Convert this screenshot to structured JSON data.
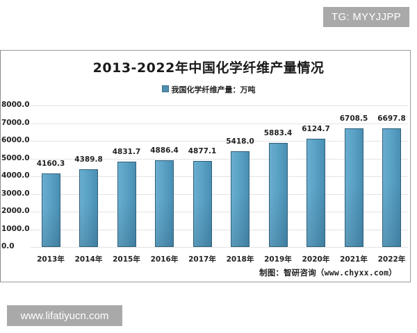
{
  "watermarks": {
    "top_right": "TG: MYYJJPP",
    "bottom_left": "www.lifatiyucn.com"
  },
  "chart": {
    "title": "2013-2022年中国化学纤维产量情况",
    "legend_label": "我国化学纤维产量：万吨",
    "source": "制图：智研咨询（www.chyxx.com）",
    "bar_color": "#5aa2c6",
    "y_ticks": [
      "8000.0",
      "7000.0",
      "6000.0",
      "5000.0",
      "4000.0",
      "3000.0",
      "2000.0",
      "1000.0",
      "0.0"
    ]
  },
  "chart_data": {
    "type": "bar",
    "title": "2013-2022年中国化学纤维产量情况",
    "xlabel": "",
    "ylabel": "",
    "categories": [
      "2013年",
      "2014年",
      "2015年",
      "2016年",
      "2017年",
      "2018年",
      "2019年",
      "2020年",
      "2021年",
      "2022年"
    ],
    "series": [
      {
        "name": "我国化学纤维产量：万吨",
        "values": [
          4160.3,
          4389.8,
          4831.7,
          4886.4,
          4877.1,
          5418.0,
          5883.4,
          6124.7,
          6708.5,
          6697.8
        ],
        "labels": [
          "4160.3",
          "4389.8",
          "4831.7",
          "4886.4",
          "4877.1",
          "5418.0",
          "5883.4",
          "6124.7",
          "6708.5",
          "6697.8"
        ]
      }
    ],
    "ylim": [
      0,
      8000
    ],
    "ytick_step": 1000,
    "grid": true,
    "legend_position": "top",
    "annotation": "制图：智研咨询（www.chyxx.com）"
  }
}
